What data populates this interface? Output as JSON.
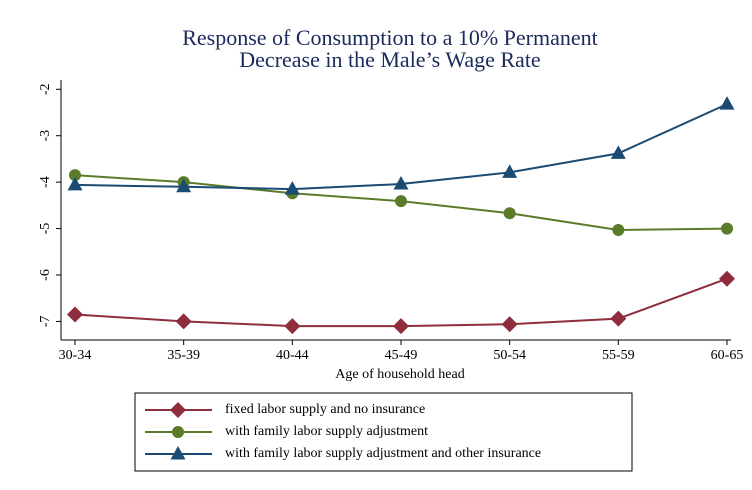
{
  "chart_data": {
    "type": "line",
    "title": [
      "Response of Consumption to a 10% Permanent",
      "Decrease in the Male’s Wage Rate"
    ],
    "x_label": "Age of household head",
    "categories": [
      "30-34",
      "35-39",
      "40-44",
      "45-49",
      "50-54",
      "55-59",
      "60-65"
    ],
    "series": [
      {
        "name": "fixed labor supply and no insurance",
        "color": "#8e2d3c",
        "marker": "diamond",
        "values": [
          -6.85,
          -7.0,
          -7.1,
          -7.1,
          -7.06,
          -6.94,
          -6.08
        ]
      },
      {
        "name": "with family labor supply adjustment",
        "color": "#5b7b2b",
        "marker": "circle",
        "values": [
          -3.85,
          -4.0,
          -4.24,
          -4.41,
          -4.67,
          -5.03,
          -5.0
        ]
      },
      {
        "name": "with family labor supply adjustment and other insurance",
        "color": "#1b4b73",
        "marker": "triangle",
        "values": [
          -4.06,
          -4.1,
          -4.15,
          -4.04,
          -3.79,
          -3.38,
          -2.32
        ]
      }
    ],
    "ylim": [
      -7.4,
      -1.8
    ],
    "yticks": [
      -7,
      -6,
      -5,
      -4,
      -3,
      -2
    ],
    "grid": false
  }
}
